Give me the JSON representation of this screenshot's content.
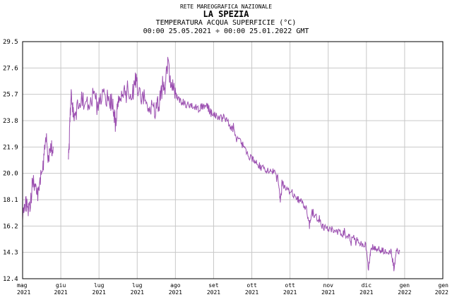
{
  "header": {
    "network": "RETE MAREOGRAFICA NAZIONALE",
    "station": "LA SPEZIA",
    "variable": "TEMPERATURA ACQUA SUPERFICIE (°C)",
    "period": "00:00 25.05.2021 ÷ 00:00 25.01.2022 GMT"
  },
  "colors": {
    "series": "#9b4fb0",
    "grid": "#c8c8c8",
    "axis": "#000000"
  },
  "chart_data": {
    "type": "line",
    "title": "TEMPERATURA ACQUA SUPERFICIE (°C)",
    "xlabel": "",
    "ylabel": "",
    "ylim": [
      12.4,
      29.5
    ],
    "grid": true,
    "y_ticks": [
      "29.5",
      "27.6",
      "25.7",
      "23.8",
      "21.9",
      "20.0",
      "18.1",
      "16.2",
      "14.3",
      "12.4"
    ],
    "x_ticks": [
      {
        "month": "mag",
        "year": "2021"
      },
      {
        "month": "giu",
        "year": "2021"
      },
      {
        "month": "lug",
        "year": "2021"
      },
      {
        "month": "lug",
        "year": "2021"
      },
      {
        "month": "ago",
        "year": "2021"
      },
      {
        "month": "set",
        "year": "2021"
      },
      {
        "month": "ott",
        "year": "2021"
      },
      {
        "month": "ott",
        "year": "2021"
      },
      {
        "month": "nov",
        "year": "2021"
      },
      {
        "month": "dic",
        "year": "2021"
      },
      {
        "month": "gen",
        "year": "2022"
      },
      {
        "month": "gen",
        "year": "2022"
      }
    ],
    "series": [
      {
        "values": [
          [
            0.0,
            16.6
          ],
          [
            0.5,
            17.8
          ],
          [
            1.0,
            17.4
          ],
          [
            1.5,
            19.6
          ],
          [
            2.0,
            18.6
          ],
          [
            2.5,
            19.6
          ],
          [
            3.0,
            20.7
          ],
          [
            3.4,
            22.8
          ],
          [
            3.7,
            21.0
          ],
          [
            4.1,
            22.0
          ],
          [
            4.4,
            21.5
          ],
          [
            6.6,
            21.0
          ],
          [
            6.8,
            23.9
          ],
          [
            7.0,
            25.4
          ],
          [
            7.3,
            24.2
          ],
          [
            7.8,
            24.6
          ],
          [
            8.6,
            25.3
          ],
          [
            9.4,
            24.9
          ],
          [
            10.2,
            25.6
          ],
          [
            11.0,
            25.0
          ],
          [
            11.8,
            25.7
          ],
          [
            12.6,
            25.2
          ],
          [
            13.0,
            24.9
          ],
          [
            13.4,
            23.5
          ],
          [
            13.8,
            25.3
          ],
          [
            14.4,
            25.6
          ],
          [
            15.1,
            26.2
          ],
          [
            15.8,
            25.6
          ],
          [
            16.3,
            26.8
          ],
          [
            16.8,
            25.8
          ],
          [
            17.6,
            25.3
          ],
          [
            18.3,
            24.7
          ],
          [
            19.0,
            24.5
          ],
          [
            19.6,
            25.0
          ],
          [
            20.1,
            26.0
          ],
          [
            20.5,
            26.2
          ],
          [
            20.9,
            27.8
          ],
          [
            21.3,
            26.6
          ],
          [
            21.8,
            25.9
          ],
          [
            22.3,
            25.4
          ],
          [
            22.9,
            25.2
          ],
          [
            23.5,
            25.0
          ],
          [
            24.1,
            24.8
          ],
          [
            24.8,
            24.8
          ],
          [
            25.4,
            24.7
          ],
          [
            26.0,
            24.9
          ],
          [
            26.6,
            24.8
          ],
          [
            27.2,
            24.3
          ],
          [
            27.8,
            24.1
          ],
          [
            28.4,
            24.0
          ],
          [
            29.0,
            23.9
          ],
          [
            29.6,
            23.6
          ],
          [
            30.2,
            23.2
          ],
          [
            30.8,
            22.7
          ],
          [
            31.4,
            22.2
          ],
          [
            32.0,
            21.8
          ],
          [
            32.6,
            21.3
          ],
          [
            33.2,
            21.0
          ],
          [
            33.8,
            20.7
          ],
          [
            34.4,
            20.4
          ],
          [
            35.0,
            20.3
          ],
          [
            35.6,
            20.2
          ],
          [
            36.2,
            20.1
          ],
          [
            36.8,
            19.6
          ],
          [
            37.1,
            18.0
          ],
          [
            37.4,
            19.3
          ],
          [
            37.9,
            18.9
          ],
          [
            38.5,
            18.6
          ],
          [
            39.1,
            18.3
          ],
          [
            39.7,
            18.1
          ],
          [
            40.3,
            17.9
          ],
          [
            40.9,
            17.4
          ],
          [
            41.3,
            16.2
          ],
          [
            41.6,
            17.2
          ],
          [
            42.2,
            16.9
          ],
          [
            42.8,
            16.4
          ],
          [
            43.4,
            16.1
          ],
          [
            44.0,
            16.0
          ],
          [
            44.6,
            16.0
          ],
          [
            45.2,
            15.8
          ],
          [
            45.8,
            15.7
          ],
          [
            46.4,
            15.6
          ],
          [
            47.0,
            15.4
          ],
          [
            47.6,
            15.2
          ],
          [
            48.2,
            15.0
          ],
          [
            48.8,
            14.9
          ],
          [
            49.4,
            14.8
          ],
          [
            49.8,
            13.0
          ],
          [
            50.1,
            14.7
          ],
          [
            50.7,
            14.6
          ],
          [
            51.3,
            14.5
          ],
          [
            51.9,
            14.4
          ],
          [
            52.5,
            14.4
          ],
          [
            53.1,
            14.3
          ],
          [
            53.5,
            13.0
          ],
          [
            53.8,
            14.4
          ],
          [
            54.3,
            14.3
          ]
        ]
      }
    ]
  }
}
